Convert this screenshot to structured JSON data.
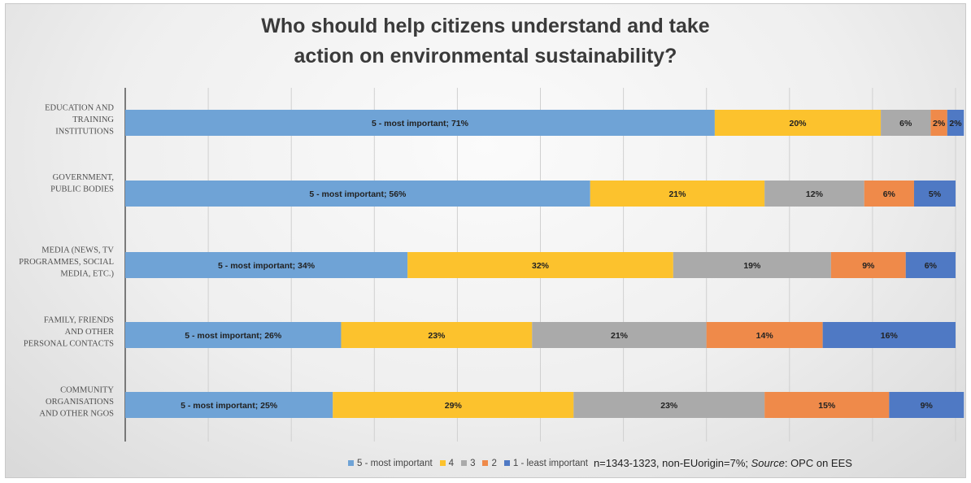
{
  "chart_data": {
    "type": "bar",
    "orientation": "horizontal",
    "stacked": true,
    "title_lines": [
      "Who should help citizens understand and take",
      "action on environmental sustainability?"
    ],
    "categories": [
      [
        "EDUCATION AND",
        "TRAINING",
        "INSTITUTIONS"
      ],
      [
        "GOVERNMENT,",
        "PUBLIC BODIES"
      ],
      [
        "MEDIA (NEWS, TV",
        "PROGRAMMES, SOCIAL",
        "MEDIA, ETC.)"
      ],
      [
        "FAMILY, FRIENDS",
        "AND OTHER",
        "PERSONAL CONTACTS"
      ],
      [
        "COMMUNITY",
        "ORGANISATIONS",
        "AND OTHER NGOS"
      ]
    ],
    "series": [
      {
        "name": "5 - most important",
        "color": "#6fa3d6",
        "values": [
          71,
          56,
          34,
          26,
          25
        ],
        "labels": [
          "5 - most important; 71%",
          "5 - most important; 56%",
          "5 - most important; 34%",
          "5 - most important; 26%",
          "5 - most important; 25%"
        ]
      },
      {
        "name": "4",
        "color": "#fcc22d",
        "values": [
          20,
          21,
          32,
          23,
          29
        ],
        "labels": [
          "20%",
          "21%",
          "32%",
          "23%",
          "29%"
        ]
      },
      {
        "name": "3",
        "color": "#aaaaaa",
        "values": [
          6,
          12,
          19,
          21,
          23
        ],
        "labels": [
          "6%",
          "12%",
          "19%",
          "21%",
          "23%"
        ]
      },
      {
        "name": "2",
        "color": "#ef8a4a",
        "values": [
          2,
          6,
          9,
          14,
          15
        ],
        "labels": [
          "2%",
          "6%",
          "9%",
          "14%",
          "15%"
        ]
      },
      {
        "name": "1 - least important",
        "color": "#4f79c4",
        "values": [
          2,
          5,
          6,
          16,
          9
        ],
        "labels": [
          "2%",
          "5%",
          "6%",
          "16%",
          "9%"
        ]
      }
    ],
    "xlim": [
      0,
      100
    ],
    "grid": true,
    "legend": "bottom",
    "note_parts": [
      "n=1343-1323, non-EUorigin=7%; ",
      "Source",
      ": OPC on EES"
    ]
  }
}
